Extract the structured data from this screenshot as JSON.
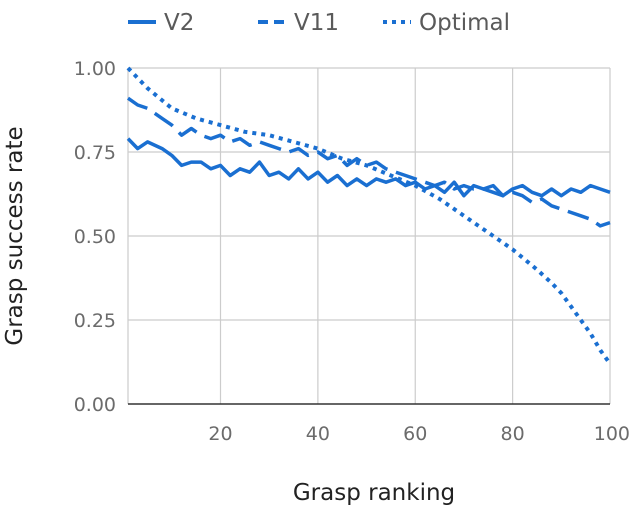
{
  "chart_data": {
    "type": "line",
    "title": "",
    "xlabel": "Grasp ranking",
    "ylabel": "Grasp success rate",
    "xlim": [
      1,
      100
    ],
    "ylim": [
      0,
      1
    ],
    "x_ticks": [
      20,
      40,
      60,
      80,
      100
    ],
    "x_tick_labels": [
      "20",
      "40",
      "60",
      "80",
      "100"
    ],
    "y_ticks": [
      0,
      0.25,
      0.5,
      0.75,
      1.0
    ],
    "y_tick_labels": [
      "0.00",
      "0.25",
      "0.50",
      "0.75",
      "1.00"
    ],
    "grid": true,
    "legend_position": "top",
    "series_color": "#1a6fd1",
    "series": [
      {
        "name": "V2",
        "style": "solid",
        "x": [
          1,
          3,
          5,
          8,
          10,
          12,
          14,
          16,
          18,
          20,
          22,
          24,
          26,
          28,
          30,
          32,
          34,
          36,
          38,
          40,
          42,
          44,
          46,
          48,
          50,
          52,
          54,
          56,
          58,
          60,
          62,
          64,
          66,
          68,
          70,
          72,
          74,
          76,
          78,
          80,
          82,
          84,
          86,
          88,
          90,
          92,
          94,
          96,
          98,
          100
        ],
        "y": [
          0.79,
          0.76,
          0.78,
          0.76,
          0.74,
          0.71,
          0.72,
          0.72,
          0.7,
          0.71,
          0.68,
          0.7,
          0.69,
          0.72,
          0.68,
          0.69,
          0.67,
          0.7,
          0.67,
          0.69,
          0.66,
          0.68,
          0.65,
          0.67,
          0.65,
          0.67,
          0.66,
          0.67,
          0.65,
          0.66,
          0.64,
          0.65,
          0.63,
          0.66,
          0.62,
          0.65,
          0.64,
          0.65,
          0.62,
          0.64,
          0.65,
          0.63,
          0.62,
          0.64,
          0.62,
          0.64,
          0.63,
          0.65,
          0.64,
          0.63
        ]
      },
      {
        "name": "V11",
        "style": "dashed",
        "x": [
          1,
          3,
          5,
          8,
          10,
          12,
          14,
          16,
          18,
          20,
          22,
          24,
          26,
          28,
          30,
          32,
          34,
          36,
          38,
          40,
          42,
          44,
          46,
          48,
          50,
          52,
          54,
          56,
          58,
          60,
          62,
          64,
          66,
          68,
          70,
          72,
          74,
          76,
          78,
          80,
          82,
          84,
          86,
          88,
          90,
          92,
          94,
          96,
          98,
          100
        ],
        "y": [
          0.91,
          0.89,
          0.88,
          0.85,
          0.83,
          0.8,
          0.82,
          0.8,
          0.79,
          0.8,
          0.78,
          0.79,
          0.77,
          0.78,
          0.77,
          0.76,
          0.75,
          0.76,
          0.74,
          0.75,
          0.73,
          0.74,
          0.71,
          0.73,
          0.71,
          0.72,
          0.7,
          0.69,
          0.68,
          0.67,
          0.66,
          0.65,
          0.66,
          0.64,
          0.65,
          0.64,
          0.64,
          0.63,
          0.62,
          0.63,
          0.62,
          0.6,
          0.61,
          0.59,
          0.58,
          0.57,
          0.56,
          0.55,
          0.53,
          0.54
        ]
      },
      {
        "name": "Optimal",
        "style": "dotted",
        "x": [
          1,
          5,
          10,
          15,
          20,
          25,
          30,
          35,
          40,
          45,
          50,
          55,
          60,
          65,
          70,
          75,
          80,
          85,
          88,
          90,
          92,
          94,
          96,
          98,
          100
        ],
        "y": [
          1.0,
          0.94,
          0.88,
          0.85,
          0.83,
          0.81,
          0.8,
          0.78,
          0.76,
          0.73,
          0.71,
          0.68,
          0.65,
          0.61,
          0.56,
          0.51,
          0.46,
          0.4,
          0.36,
          0.33,
          0.29,
          0.25,
          0.21,
          0.16,
          0.12
        ]
      }
    ]
  }
}
